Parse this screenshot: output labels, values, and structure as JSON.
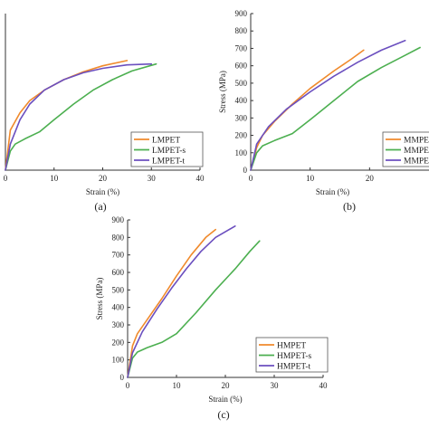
{
  "chart_data": [
    {
      "id": "a",
      "type": "line",
      "caption": "(a)",
      "xlabel": "Strain (%)",
      "ylabel": "",
      "xlim": [
        0,
        40
      ],
      "x_ticks": [
        0,
        10,
        20,
        30,
        40
      ],
      "ylim": [
        0,
        900
      ],
      "y_ticks": [],
      "grid": false,
      "legend": "bottom-right",
      "series": [
        {
          "name": "LMPET",
          "color": "#f08a2c",
          "points": [
            [
              0,
              0
            ],
            [
              1,
              230
            ],
            [
              3,
              330
            ],
            [
              5,
              400
            ],
            [
              8,
              460
            ],
            [
              12,
              520
            ],
            [
              16,
              565
            ],
            [
              20,
              600
            ],
            [
              25,
              630
            ]
          ]
        },
        {
          "name": "LMPET-s",
          "color": "#4caf50",
          "points": [
            [
              0,
              0
            ],
            [
              1,
              110
            ],
            [
              2,
              150
            ],
            [
              4,
              180
            ],
            [
              7,
              220
            ],
            [
              10,
              290
            ],
            [
              14,
              380
            ],
            [
              18,
              460
            ],
            [
              22,
              520
            ],
            [
              26,
              570
            ],
            [
              31,
              610
            ]
          ]
        },
        {
          "name": "LMPET-t",
          "color": "#6b4fbf",
          "points": [
            [
              0,
              0
            ],
            [
              1,
              150
            ],
            [
              3,
              290
            ],
            [
              5,
              380
            ],
            [
              8,
              460
            ],
            [
              12,
              520
            ],
            [
              16,
              560
            ],
            [
              20,
              585
            ],
            [
              25,
              605
            ],
            [
              30,
              610
            ]
          ]
        }
      ]
    },
    {
      "id": "b",
      "type": "line",
      "caption": "(b)",
      "xlabel": "Strain (%)",
      "ylabel": "Stress (MPa)",
      "xlim": [
        0,
        30
      ],
      "x_ticks": [
        0,
        10,
        20
      ],
      "ylim": [
        0,
        900
      ],
      "y_ticks": [
        0,
        100,
        200,
        300,
        400,
        500,
        600,
        700,
        800,
        900
      ],
      "grid": false,
      "legend": "bottom-right",
      "series": [
        {
          "name": "MMPET",
          "color": "#f08a2c",
          "points": [
            [
              0,
              0
            ],
            [
              1,
              130
            ],
            [
              2,
              200
            ],
            [
              4,
              280
            ],
            [
              7,
              380
            ],
            [
              10,
              470
            ],
            [
              14,
              570
            ],
            [
              17,
              640
            ],
            [
              19,
              690
            ]
          ]
        },
        {
          "name": "MMPET-s",
          "color": "#4caf50",
          "points": [
            [
              0,
              0
            ],
            [
              1,
              100
            ],
            [
              2,
              140
            ],
            [
              4,
              170
            ],
            [
              7,
              210
            ],
            [
              10,
              290
            ],
            [
              14,
              400
            ],
            [
              18,
              510
            ],
            [
              22,
              590
            ],
            [
              26,
              660
            ],
            [
              28.5,
              705
            ]
          ]
        },
        {
          "name": "MMPET-t",
          "color": "#6b4fbf",
          "points": [
            [
              0,
              0
            ],
            [
              1,
              150
            ],
            [
              3,
              250
            ],
            [
              6,
              350
            ],
            [
              10,
              450
            ],
            [
              14,
              540
            ],
            [
              18,
              620
            ],
            [
              22,
              690
            ],
            [
              26,
              745
            ]
          ]
        }
      ]
    },
    {
      "id": "c",
      "type": "line",
      "caption": "(c)",
      "xlabel": "Strain (%)",
      "ylabel": "Stress (MPa)",
      "xlim": [
        0,
        40
      ],
      "x_ticks": [
        0,
        10,
        20,
        30,
        40
      ],
      "ylim": [
        0,
        900
      ],
      "y_ticks": [
        0,
        100,
        200,
        300,
        400,
        500,
        600,
        700,
        800,
        900
      ],
      "grid": false,
      "legend": "bottom-right",
      "series": [
        {
          "name": "HMPET",
          "color": "#f08a2c",
          "points": [
            [
              0,
              0
            ],
            [
              1,
              180
            ],
            [
              2,
              250
            ],
            [
              4,
              330
            ],
            [
              7,
              450
            ],
            [
              10,
              580
            ],
            [
              13,
              700
            ],
            [
              16,
              800
            ],
            [
              18,
              845
            ]
          ]
        },
        {
          "name": "HMPET-s",
          "color": "#4caf50",
          "points": [
            [
              0,
              0
            ],
            [
              1,
              110
            ],
            [
              2,
              145
            ],
            [
              4,
              170
            ],
            [
              7,
              200
            ],
            [
              10,
              250
            ],
            [
              14,
              370
            ],
            [
              18,
              500
            ],
            [
              22,
              620
            ],
            [
              25,
              720
            ],
            [
              27,
              780
            ]
          ]
        },
        {
          "name": "HMPET-t",
          "color": "#6b4fbf",
          "points": [
            [
              0,
              0
            ],
            [
              1,
              140
            ],
            [
              3,
              260
            ],
            [
              6,
              390
            ],
            [
              9,
              510
            ],
            [
              12,
              620
            ],
            [
              15,
              720
            ],
            [
              18,
              800
            ],
            [
              22,
              865
            ]
          ]
        }
      ]
    }
  ]
}
